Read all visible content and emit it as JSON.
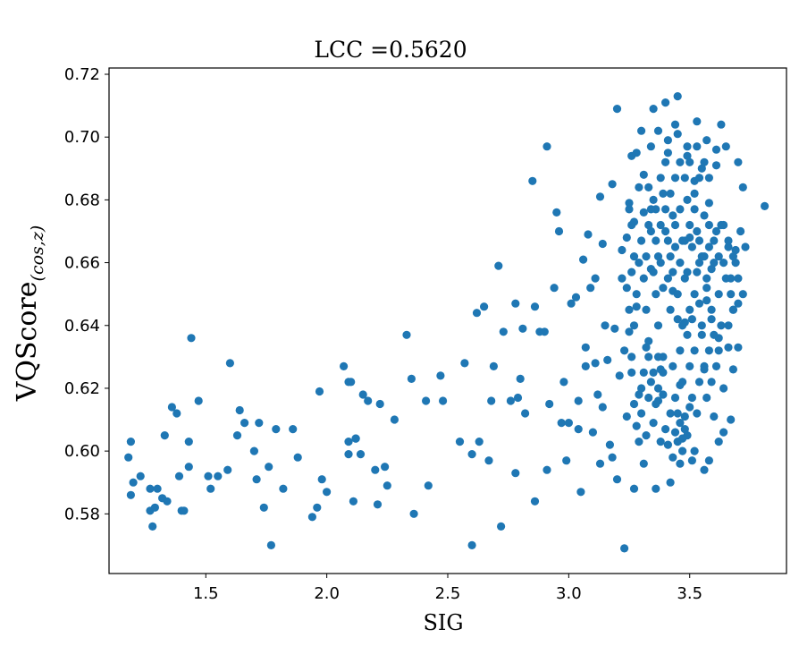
{
  "chart_data": {
    "type": "scatter",
    "title": "LCC =0.5620",
    "xlabel": "SIG",
    "ylabel": {
      "main": "VQScore",
      "subscript": "(cos,z)"
    },
    "xlim": [
      1.1,
      3.9
    ],
    "ylim": [
      0.561,
      0.722
    ],
    "xticks": [
      1.5,
      2.0,
      2.5,
      3.0,
      3.5
    ],
    "xtick_labels": [
      "1.5",
      "2.0",
      "2.5",
      "3.0",
      "3.5"
    ],
    "yticks": [
      0.58,
      0.6,
      0.62,
      0.64,
      0.66,
      0.68,
      0.7,
      0.72
    ],
    "ytick_labels": [
      "0.58",
      "0.60",
      "0.62",
      "0.64",
      "0.66",
      "0.68",
      "0.70",
      "0.72"
    ],
    "grid": false,
    "marker_color": "#1f77b4",
    "points": [
      [
        1.18,
        0.598
      ],
      [
        1.19,
        0.603
      ],
      [
        1.2,
        0.59
      ],
      [
        1.19,
        0.586
      ],
      [
        1.23,
        0.592
      ],
      [
        1.27,
        0.588
      ],
      [
        1.28,
        0.576
      ],
      [
        1.27,
        0.581
      ],
      [
        1.29,
        0.582
      ],
      [
        1.3,
        0.588
      ],
      [
        1.32,
        0.585
      ],
      [
        1.33,
        0.605
      ],
      [
        1.34,
        0.584
      ],
      [
        1.36,
        0.614
      ],
      [
        1.38,
        0.612
      ],
      [
        1.39,
        0.592
      ],
      [
        1.4,
        0.581
      ],
      [
        1.41,
        0.581
      ],
      [
        1.43,
        0.595
      ],
      [
        1.43,
        0.603
      ],
      [
        1.44,
        0.636
      ],
      [
        1.47,
        0.616
      ],
      [
        1.51,
        0.592
      ],
      [
        1.52,
        0.588
      ],
      [
        1.55,
        0.592
      ],
      [
        1.59,
        0.594
      ],
      [
        1.6,
        0.628
      ],
      [
        1.63,
        0.605
      ],
      [
        1.64,
        0.613
      ],
      [
        1.66,
        0.609
      ],
      [
        1.7,
        0.6
      ],
      [
        1.71,
        0.591
      ],
      [
        1.72,
        0.609
      ],
      [
        1.74,
        0.582
      ],
      [
        1.76,
        0.595
      ],
      [
        1.77,
        0.57
      ],
      [
        1.79,
        0.607
      ],
      [
        1.82,
        0.588
      ],
      [
        1.86,
        0.607
      ],
      [
        1.88,
        0.598
      ],
      [
        1.94,
        0.579
      ],
      [
        1.96,
        0.582
      ],
      [
        1.97,
        0.619
      ],
      [
        1.98,
        0.591
      ],
      [
        2.0,
        0.587
      ],
      [
        2.07,
        0.627
      ],
      [
        2.09,
        0.622
      ],
      [
        2.09,
        0.599
      ],
      [
        2.09,
        0.603
      ],
      [
        2.1,
        0.622
      ],
      [
        2.11,
        0.584
      ],
      [
        2.12,
        0.604
      ],
      [
        2.12,
        0.604
      ],
      [
        2.14,
        0.599
      ],
      [
        2.15,
        0.618
      ],
      [
        2.17,
        0.616
      ],
      [
        2.2,
        0.594
      ],
      [
        2.21,
        0.583
      ],
      [
        2.22,
        0.615
      ],
      [
        2.24,
        0.595
      ],
      [
        2.25,
        0.589
      ],
      [
        2.28,
        0.61
      ],
      [
        2.33,
        0.637
      ],
      [
        2.35,
        0.623
      ],
      [
        2.36,
        0.58
      ],
      [
        2.41,
        0.616
      ],
      [
        2.42,
        0.589
      ],
      [
        2.47,
        0.624
      ],
      [
        2.48,
        0.616
      ],
      [
        2.55,
        0.603
      ],
      [
        2.57,
        0.628
      ],
      [
        2.6,
        0.57
      ],
      [
        2.6,
        0.599
      ],
      [
        2.62,
        0.644
      ],
      [
        2.63,
        0.603
      ],
      [
        2.65,
        0.646
      ],
      [
        2.67,
        0.597
      ],
      [
        2.68,
        0.616
      ],
      [
        2.69,
        0.627
      ],
      [
        2.71,
        0.659
      ],
      [
        2.72,
        0.576
      ],
      [
        2.73,
        0.638
      ],
      [
        2.76,
        0.616
      ],
      [
        2.78,
        0.593
      ],
      [
        2.78,
        0.647
      ],
      [
        2.79,
        0.617
      ],
      [
        2.8,
        0.623
      ],
      [
        2.81,
        0.639
      ],
      [
        2.82,
        0.612
      ],
      [
        2.85,
        0.686
      ],
      [
        2.86,
        0.584
      ],
      [
        2.86,
        0.646
      ],
      [
        2.88,
        0.638
      ],
      [
        2.91,
        0.697
      ],
      [
        2.9,
        0.638
      ],
      [
        2.91,
        0.594
      ],
      [
        2.92,
        0.615
      ],
      [
        2.94,
        0.652
      ],
      [
        2.95,
        0.676
      ],
      [
        2.96,
        0.67
      ],
      [
        2.97,
        0.609
      ],
      [
        2.98,
        0.622
      ],
      [
        2.99,
        0.597
      ],
      [
        3.0,
        0.609
      ],
      [
        3.01,
        0.647
      ],
      [
        3.03,
        0.649
      ],
      [
        3.04,
        0.607
      ],
      [
        3.04,
        0.616
      ],
      [
        3.05,
        0.587
      ],
      [
        3.06,
        0.661
      ],
      [
        3.07,
        0.633
      ],
      [
        3.07,
        0.627
      ],
      [
        3.08,
        0.669
      ],
      [
        3.09,
        0.652
      ],
      [
        3.1,
        0.606
      ],
      [
        3.11,
        0.655
      ],
      [
        3.11,
        0.628
      ],
      [
        3.12,
        0.618
      ],
      [
        3.13,
        0.596
      ],
      [
        3.13,
        0.681
      ],
      [
        3.14,
        0.614
      ],
      [
        3.14,
        0.666
      ],
      [
        3.15,
        0.64
      ],
      [
        3.16,
        0.629
      ],
      [
        3.17,
        0.602
      ],
      [
        3.18,
        0.685
      ],
      [
        3.18,
        0.598
      ],
      [
        3.19,
        0.639
      ],
      [
        3.2,
        0.709
      ],
      [
        3.2,
        0.591
      ],
      [
        3.21,
        0.624
      ],
      [
        3.22,
        0.664
      ],
      [
        3.23,
        0.569
      ],
      [
        3.24,
        0.611
      ],
      [
        3.25,
        0.677
      ],
      [
        3.26,
        0.694
      ],
      [
        3.27,
        0.588
      ],
      [
        3.28,
        0.646
      ],
      [
        3.29,
        0.618
      ],
      [
        3.3,
        0.702
      ],
      [
        3.31,
        0.596
      ],
      [
        3.32,
        0.633
      ],
      [
        3.33,
        0.672
      ],
      [
        3.34,
        0.658
      ],
      [
        3.35,
        0.709
      ],
      [
        3.36,
        0.588
      ],
      [
        3.37,
        0.616
      ],
      [
        3.38,
        0.626
      ],
      [
        3.39,
        0.682
      ],
      [
        3.4,
        0.711
      ],
      [
        3.41,
        0.695
      ],
      [
        3.42,
        0.59
      ],
      [
        3.43,
        0.651
      ],
      [
        3.44,
        0.704
      ],
      [
        3.45,
        0.713
      ],
      [
        3.46,
        0.621
      ],
      [
        3.47,
        0.6
      ],
      [
        3.48,
        0.641
      ],
      [
        3.49,
        0.697
      ],
      [
        3.5,
        0.668
      ],
      [
        3.51,
        0.597
      ],
      [
        3.52,
        0.686
      ],
      [
        3.53,
        0.705
      ],
      [
        3.54,
        0.647
      ],
      [
        3.55,
        0.69
      ],
      [
        3.56,
        0.626
      ],
      [
        3.57,
        0.648
      ],
      [
        3.58,
        0.679
      ],
      [
        3.59,
        0.658
      ],
      [
        3.6,
        0.611
      ],
      [
        3.61,
        0.691
      ],
      [
        3.62,
        0.636
      ],
      [
        3.63,
        0.672
      ],
      [
        3.64,
        0.62
      ],
      [
        3.65,
        0.697
      ],
      [
        3.66,
        0.64
      ],
      [
        3.67,
        0.655
      ],
      [
        3.68,
        0.645
      ],
      [
        3.69,
        0.664
      ],
      [
        3.7,
        0.692
      ],
      [
        3.71,
        0.67
      ],
      [
        3.72,
        0.684
      ],
      [
        3.73,
        0.665
      ],
      [
        3.81,
        0.678
      ],
      [
        3.26,
        0.63
      ],
      [
        3.27,
        0.64
      ],
      [
        3.28,
        0.65
      ],
      [
        3.29,
        0.66
      ],
      [
        3.3,
        0.62
      ],
      [
        3.31,
        0.655
      ],
      [
        3.32,
        0.645
      ],
      [
        3.33,
        0.635
      ],
      [
        3.34,
        0.67
      ],
      [
        3.35,
        0.68
      ],
      [
        3.36,
        0.65
      ],
      [
        3.37,
        0.64
      ],
      [
        3.38,
        0.66
      ],
      [
        3.39,
        0.63
      ],
      [
        3.4,
        0.67
      ],
      [
        3.41,
        0.655
      ],
      [
        3.42,
        0.645
      ],
      [
        3.43,
        0.675
      ],
      [
        3.44,
        0.665
      ],
      [
        3.45,
        0.65
      ],
      [
        3.46,
        0.66
      ],
      [
        3.47,
        0.64
      ],
      [
        3.48,
        0.655
      ],
      [
        3.49,
        0.68
      ],
      [
        3.5,
        0.645
      ],
      [
        3.51,
        0.665
      ],
      [
        3.52,
        0.65
      ],
      [
        3.53,
        0.67
      ],
      [
        3.54,
        0.66
      ],
      [
        3.55,
        0.64
      ],
      [
        3.56,
        0.675
      ],
      [
        3.57,
        0.655
      ],
      [
        3.58,
        0.665
      ],
      [
        3.59,
        0.645
      ],
      [
        3.6,
        0.66
      ],
      [
        3.61,
        0.67
      ],
      [
        3.62,
        0.65
      ],
      [
        3.63,
        0.64
      ],
      [
        3.64,
        0.66
      ],
      [
        3.65,
        0.655
      ],
      [
        3.66,
        0.665
      ],
      [
        3.67,
        0.65
      ],
      [
        3.68,
        0.645
      ],
      [
        3.69,
        0.66
      ],
      [
        3.7,
        0.655
      ],
      [
        3.43,
        0.627
      ],
      [
        3.44,
        0.617
      ],
      [
        3.45,
        0.612
      ],
      [
        3.46,
        0.632
      ],
      [
        3.47,
        0.622
      ],
      [
        3.48,
        0.607
      ],
      [
        3.49,
        0.637
      ],
      [
        3.5,
        0.627
      ],
      [
        3.51,
        0.617
      ],
      [
        3.52,
        0.632
      ],
      [
        3.53,
        0.612
      ],
      [
        3.54,
        0.622
      ],
      [
        3.55,
        0.637
      ],
      [
        3.56,
        0.627
      ],
      [
        3.57,
        0.617
      ],
      [
        3.58,
        0.632
      ],
      [
        3.59,
        0.622
      ],
      [
        3.6,
        0.637
      ],
      [
        3.61,
        0.627
      ],
      [
        3.62,
        0.632
      ],
      [
        3.4,
        0.607
      ],
      [
        3.41,
        0.602
      ],
      [
        3.42,
        0.612
      ],
      [
        3.43,
        0.598
      ],
      [
        3.44,
        0.606
      ],
      [
        3.45,
        0.603
      ],
      [
        3.46,
        0.609
      ],
      [
        3.47,
        0.604
      ],
      [
        3.48,
        0.611
      ],
      [
        3.49,
        0.605
      ],
      [
        3.5,
        0.614
      ],
      [
        3.3,
        0.612
      ],
      [
        3.32,
        0.605
      ],
      [
        3.33,
        0.617
      ],
      [
        3.34,
        0.622
      ],
      [
        3.35,
        0.609
      ],
      [
        3.36,
        0.615
      ],
      [
        3.37,
        0.62
      ],
      [
        3.38,
        0.603
      ],
      [
        3.39,
        0.618
      ],
      [
        3.28,
        0.608
      ],
      [
        3.27,
        0.615
      ],
      [
        3.29,
        0.603
      ],
      [
        3.31,
        0.625
      ],
      [
        3.33,
        0.63
      ],
      [
        3.35,
        0.625
      ],
      [
        3.37,
        0.63
      ],
      [
        3.39,
        0.625
      ],
      [
        3.36,
        0.677
      ],
      [
        3.38,
        0.687
      ],
      [
        3.4,
        0.692
      ],
      [
        3.42,
        0.682
      ],
      [
        3.44,
        0.687
      ],
      [
        3.46,
        0.692
      ],
      [
        3.48,
        0.687
      ],
      [
        3.5,
        0.692
      ],
      [
        3.52,
        0.682
      ],
      [
        3.54,
        0.687
      ],
      [
        3.56,
        0.692
      ],
      [
        3.58,
        0.687
      ],
      [
        3.3,
        0.667
      ],
      [
        3.32,
        0.662
      ],
      [
        3.34,
        0.677
      ],
      [
        3.36,
        0.667
      ],
      [
        3.38,
        0.672
      ],
      [
        3.4,
        0.677
      ],
      [
        3.42,
        0.662
      ],
      [
        3.44,
        0.672
      ],
      [
        3.46,
        0.677
      ],
      [
        3.48,
        0.667
      ],
      [
        3.5,
        0.672
      ],
      [
        3.52,
        0.677
      ],
      [
        3.54,
        0.667
      ],
      [
        3.56,
        0.662
      ],
      [
        3.58,
        0.672
      ],
      [
        3.6,
        0.667
      ],
      [
        3.62,
        0.662
      ],
      [
        3.64,
        0.672
      ],
      [
        3.66,
        0.667
      ],
      [
        3.68,
        0.662
      ],
      [
        3.7,
        0.647
      ],
      [
        3.72,
        0.65
      ],
      [
        3.28,
        0.695
      ],
      [
        3.31,
        0.688
      ],
      [
        3.34,
        0.697
      ],
      [
        3.37,
        0.702
      ],
      [
        3.41,
        0.699
      ],
      [
        3.45,
        0.701
      ],
      [
        3.49,
        0.694
      ],
      [
        3.53,
        0.697
      ],
      [
        3.57,
        0.699
      ],
      [
        3.61,
        0.696
      ],
      [
        3.63,
        0.704
      ],
      [
        3.25,
        0.679
      ],
      [
        3.27,
        0.673
      ],
      [
        3.29,
        0.684
      ],
      [
        3.31,
        0.676
      ],
      [
        3.33,
        0.684
      ],
      [
        3.35,
        0.657
      ],
      [
        3.37,
        0.662
      ],
      [
        3.39,
        0.652
      ],
      [
        3.41,
        0.667
      ],
      [
        3.43,
        0.657
      ],
      [
        3.45,
        0.642
      ],
      [
        3.47,
        0.667
      ],
      [
        3.49,
        0.657
      ],
      [
        3.51,
        0.642
      ],
      [
        3.53,
        0.657
      ],
      [
        3.55,
        0.662
      ],
      [
        3.57,
        0.652
      ],
      [
        3.59,
        0.642
      ],
      [
        3.24,
        0.652
      ],
      [
        3.25,
        0.645
      ],
      [
        3.26,
        0.657
      ],
      [
        3.27,
        0.662
      ],
      [
        3.25,
        0.638
      ],
      [
        3.26,
        0.625
      ],
      [
        3.23,
        0.632
      ],
      [
        3.22,
        0.655
      ],
      [
        3.24,
        0.668
      ],
      [
        3.26,
        0.672
      ],
      [
        3.66,
        0.633
      ],
      [
        3.68,
        0.626
      ],
      [
        3.7,
        0.633
      ],
      [
        3.67,
        0.61
      ],
      [
        3.64,
        0.606
      ],
      [
        3.62,
        0.603
      ],
      [
        3.58,
        0.597
      ],
      [
        3.56,
        0.594
      ],
      [
        3.52,
        0.6
      ],
      [
        3.46,
        0.596
      ]
    ]
  }
}
